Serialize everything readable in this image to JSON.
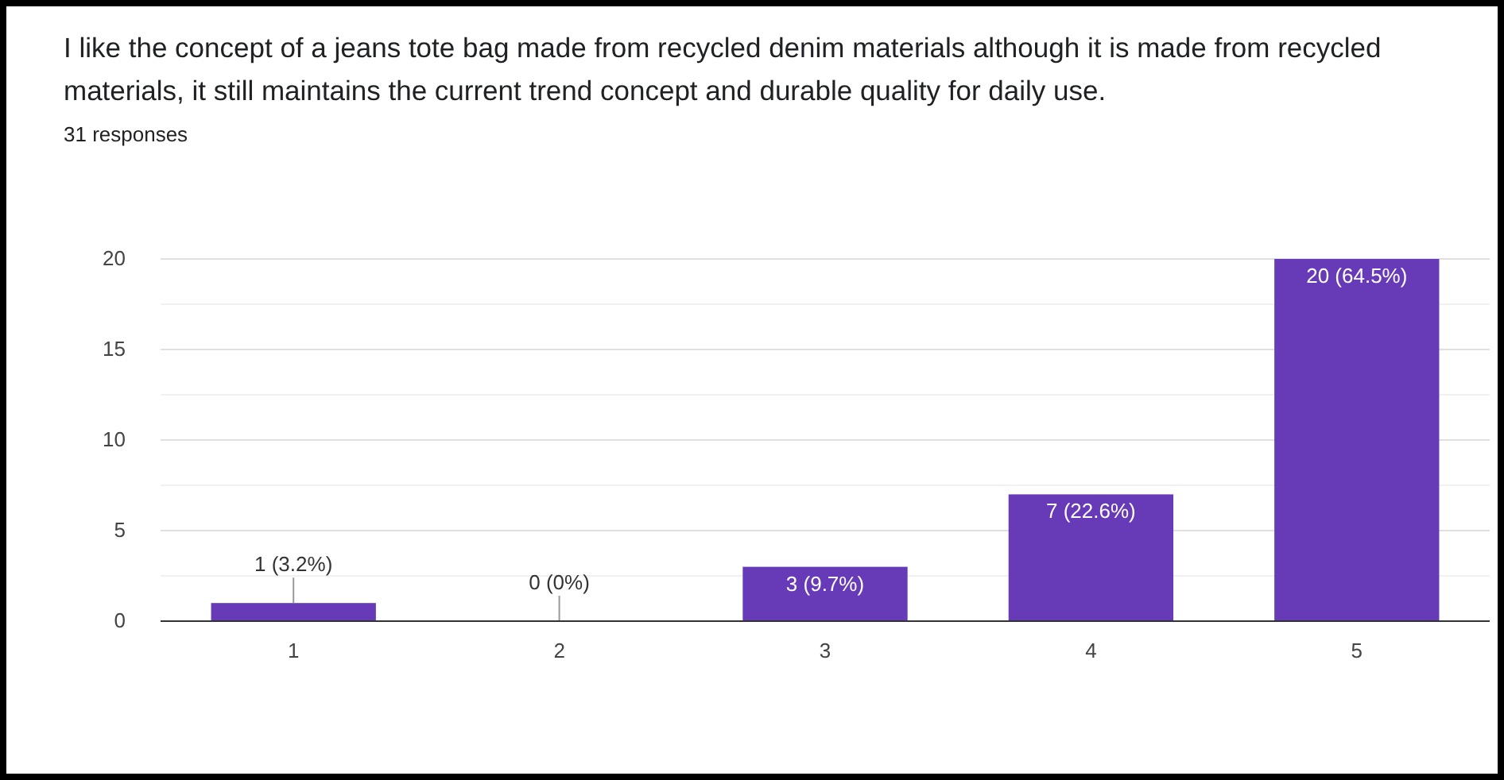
{
  "chart_data": {
    "type": "bar",
    "title": "I like the concept of a jeans tote bag made from recycled denim materials although it is made from recycled materials, it still maintains the current trend concept and durable quality for daily use.",
    "subtitle": "31 responses",
    "categories": [
      "1",
      "2",
      "3",
      "4",
      "5"
    ],
    "values": [
      1,
      0,
      3,
      7,
      20
    ],
    "color": "#673ab7",
    "value_labels": [
      "1 (3.2%)",
      "0 (0%)",
      "3 (9.7%)",
      "7 (22.6%)",
      "20 (64.5%)"
    ],
    "ylim": [
      0,
      20
    ],
    "yticks": [
      0,
      {
        "value": 2.5,
        "label": null
      },
      5,
      {
        "value": 7.5,
        "label": null
      },
      10,
      {
        "value": 12.5,
        "label": null
      },
      15,
      {
        "value": 17.5,
        "label": null
      },
      20
    ],
    "grid": true
  }
}
